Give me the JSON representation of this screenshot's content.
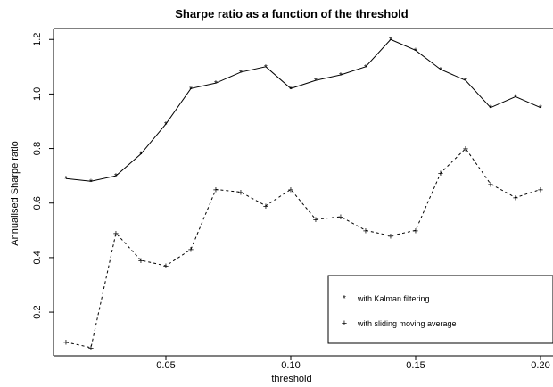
{
  "chart_data": {
    "type": "line",
    "title": "Sharpe ratio as a function of the threshold",
    "xlabel": "threshold",
    "ylabel": "Annualised Sharpe ratio",
    "xlim": [
      0.005,
      0.205
    ],
    "ylim": [
      0.04,
      1.24
    ],
    "x_ticks": [
      0.05,
      0.1,
      0.15,
      0.2
    ],
    "x_tick_labels": [
      "0.05",
      "0.10",
      "0.15",
      "0.20"
    ],
    "y_ticks": [
      0.2,
      0.4,
      0.6,
      0.8,
      1.0,
      1.2
    ],
    "y_tick_labels": [
      "0.2",
      "0.4",
      "0.6",
      "0.8",
      "1.0",
      "1.2"
    ],
    "legend_position": "bottom-right",
    "x": [
      0.01,
      0.02,
      0.03,
      0.04,
      0.05,
      0.06,
      0.07,
      0.08,
      0.09,
      0.1,
      0.11,
      0.12,
      0.13,
      0.14,
      0.15,
      0.16,
      0.17,
      0.18,
      0.19,
      0.2
    ],
    "series": [
      {
        "name": "with Kalman filtering",
        "line_style": "solid",
        "marker": "*",
        "values": [
          0.69,
          0.68,
          0.7,
          0.78,
          0.89,
          1.02,
          1.04,
          1.08,
          1.1,
          1.02,
          1.05,
          1.07,
          1.1,
          1.2,
          1.16,
          1.09,
          1.05,
          0.95,
          0.99,
          0.95
        ]
      },
      {
        "name": "with sliding moving average",
        "line_style": "dashed",
        "marker": "+",
        "values": [
          0.09,
          0.07,
          0.49,
          0.39,
          0.37,
          0.43,
          0.65,
          0.64,
          0.59,
          0.65,
          0.54,
          0.55,
          0.5,
          0.48,
          0.5,
          0.71,
          0.8,
          0.67,
          0.62,
          0.65
        ]
      }
    ]
  }
}
